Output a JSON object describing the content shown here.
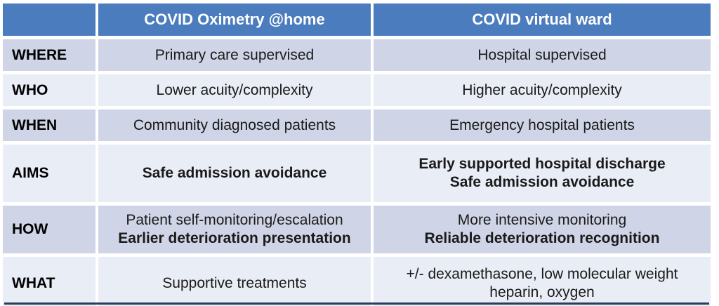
{
  "header": {
    "corner": "",
    "col1": "COVID Oximetry @home",
    "col2": "COVID virtual ward"
  },
  "rows": [
    {
      "label": "WHERE",
      "cells": [
        [
          {
            "text": "Primary care supervised",
            "bold": false
          }
        ],
        [
          {
            "text": "Hospital supervised",
            "bold": false
          }
        ]
      ]
    },
    {
      "label": "WHO",
      "cells": [
        [
          {
            "text": "Lower acuity/complexity",
            "bold": false
          }
        ],
        [
          {
            "text": "Higher acuity/complexity",
            "bold": false
          }
        ]
      ]
    },
    {
      "label": "WHEN",
      "cells": [
        [
          {
            "text": "Community diagnosed patients",
            "bold": false
          }
        ],
        [
          {
            "text": "Emergency hospital patients",
            "bold": false
          }
        ]
      ]
    },
    {
      "label": "AIMS",
      "cells": [
        [
          {
            "text": "Safe admission avoidance",
            "bold": true
          }
        ],
        [
          {
            "text": "Early supported hospital discharge",
            "bold": true
          },
          {
            "text": "Safe admission avoidance",
            "bold": true
          }
        ]
      ]
    },
    {
      "label": "HOW",
      "cells": [
        [
          {
            "text": "Patient self-monitoring/escalation",
            "bold": false
          },
          {
            "text": "Earlier deterioration presentation",
            "bold": true
          }
        ],
        [
          {
            "text": "More intensive monitoring",
            "bold": false
          },
          {
            "text": "Reliable deterioration recognition",
            "bold": true
          }
        ]
      ]
    },
    {
      "label": "WHAT",
      "cells": [
        [
          {
            "text": "Supportive treatments",
            "bold": false
          }
        ],
        [
          {
            "text": "+/- dexamethasone, low molecular weight heparin, oxygen",
            "bold": false
          }
        ]
      ]
    }
  ],
  "colors": {
    "header_bg": "#4a7cbe",
    "header_text": "#ffffff",
    "row_dark": "#cfd5e6",
    "row_light": "#e9edf6",
    "body_text": "#1a1a1a",
    "bottom_bar": "#2b3b5c"
  }
}
